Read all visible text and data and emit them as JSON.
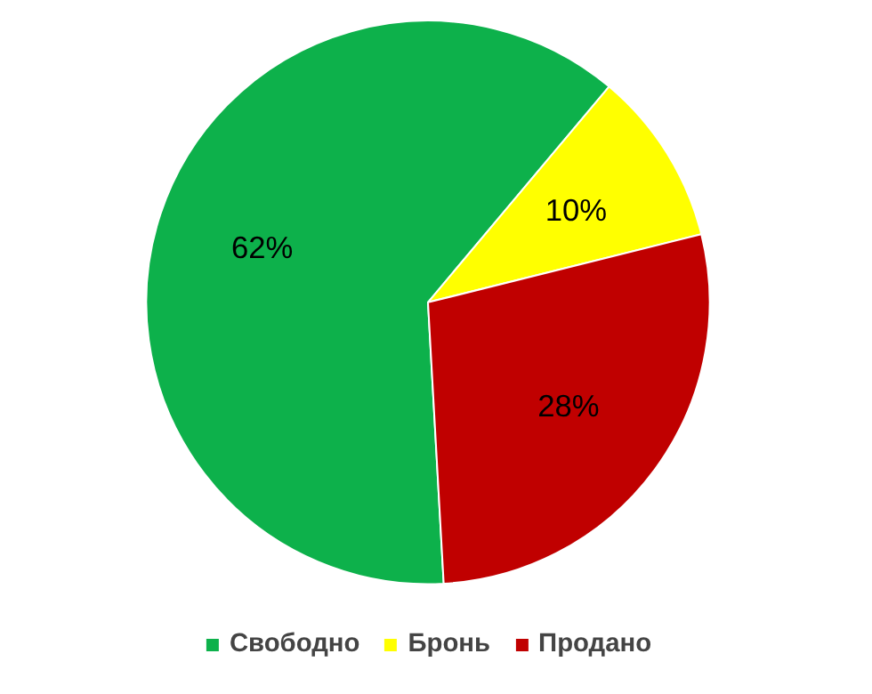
{
  "chart_data": {
    "type": "pie",
    "categories": [
      "Свободно",
      "Бронь",
      "Продано"
    ],
    "values": [
      62,
      10,
      28
    ],
    "colors": [
      "#0db14b",
      "#ffff00",
      "#c00000"
    ],
    "value_labels": [
      "62%",
      "10%",
      "28%"
    ],
    "legend": "bottom"
  }
}
